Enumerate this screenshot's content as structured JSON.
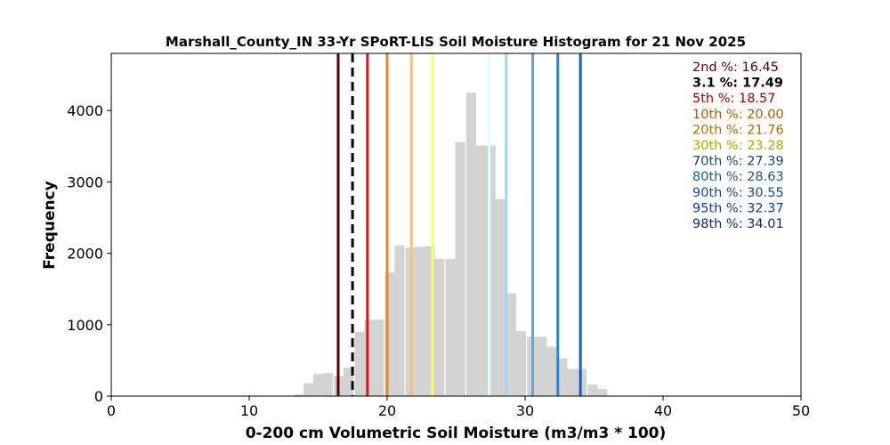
{
  "chart_data": {
    "type": "bar",
    "title": "Marshall_County_IN 33-Yr SPoRT-LIS Soil Moisture Histogram for 21 Nov 2025",
    "xlabel": "0-200 cm Volumetric Soil Moisture (m3/m3 * 100)",
    "ylabel": "Frequency",
    "xlim": [
      0,
      50
    ],
    "ylim": [
      0,
      4800
    ],
    "xticks": [
      0,
      10,
      20,
      30,
      40,
      50
    ],
    "yticks": [
      0,
      1000,
      2000,
      3000,
      4000
    ],
    "bin_width": 0.72,
    "bar_color": "#d3d3d3",
    "bins": [
      {
        "x": 13.6,
        "count": 20
      },
      {
        "x": 14.3,
        "count": 180
      },
      {
        "x": 15.0,
        "count": 310
      },
      {
        "x": 15.7,
        "count": 320
      },
      {
        "x": 16.5,
        "count": 280
      },
      {
        "x": 17.2,
        "count": 400
      },
      {
        "x": 18.0,
        "count": 900
      },
      {
        "x": 18.7,
        "count": 1070
      },
      {
        "x": 19.4,
        "count": 1070
      },
      {
        "x": 20.2,
        "count": 1730
      },
      {
        "x": 20.9,
        "count": 2110
      },
      {
        "x": 21.7,
        "count": 2080
      },
      {
        "x": 22.4,
        "count": 2090
      },
      {
        "x": 23.1,
        "count": 2100
      },
      {
        "x": 23.8,
        "count": 1920
      },
      {
        "x": 24.6,
        "count": 1920
      },
      {
        "x": 25.3,
        "count": 3560
      },
      {
        "x": 26.1,
        "count": 4250
      },
      {
        "x": 26.8,
        "count": 3510
      },
      {
        "x": 27.5,
        "count": 3510
      },
      {
        "x": 28.2,
        "count": 2760
      },
      {
        "x": 29.0,
        "count": 1440
      },
      {
        "x": 29.7,
        "count": 910
      },
      {
        "x": 30.5,
        "count": 830
      },
      {
        "x": 31.2,
        "count": 830
      },
      {
        "x": 31.9,
        "count": 690
      },
      {
        "x": 32.7,
        "count": 530
      },
      {
        "x": 33.4,
        "count": 380
      },
      {
        "x": 34.1,
        "count": 380
      },
      {
        "x": 34.9,
        "count": 160
      },
      {
        "x": 35.6,
        "count": 100
      },
      {
        "x": 36.3,
        "count": 0
      }
    ],
    "percentiles": [
      {
        "label": "2nd %: 16.45",
        "value": 16.45,
        "color": "#5a0000",
        "dashed": false
      },
      {
        "label": "3.1 %: 17.49",
        "value": 17.49,
        "color": "#000000",
        "dashed": true
      },
      {
        "label": "5th %: 18.57",
        "value": 18.57,
        "color": "#d7191c",
        "dashed": false
      },
      {
        "label": "10th %: 20.00",
        "value": 20.0,
        "color": "#e6892b",
        "dashed": false
      },
      {
        "label": "20th %: 21.76",
        "value": 21.76,
        "color": "#f5c27a",
        "dashed": false
      },
      {
        "label": "30th %: 23.28",
        "value": 23.28,
        "color": "#ffff66",
        "dashed": false
      },
      {
        "label": "70th %: 27.39",
        "value": 27.39,
        "color": "#e0ffff",
        "dashed": false
      },
      {
        "label": "80th %: 28.63",
        "value": 28.63,
        "color": "#a6d2f5",
        "dashed": false
      },
      {
        "label": "90th %: 30.55",
        "value": 30.55,
        "color": "#5aa6e8",
        "dashed": false
      },
      {
        "label": "95th %: 32.37",
        "value": 32.37,
        "color": "#2b7fd6",
        "dashed": false
      },
      {
        "label": "98th %: 34.01",
        "value": 34.01,
        "color": "#1560bd",
        "dashed": false
      }
    ],
    "legend_placement": "upper-right",
    "grid": false
  },
  "legend_text_colors": [
    "#5a0000",
    "#000000",
    "#a00000",
    "#b05a00",
    "#b06a10",
    "#b0a800",
    "#1a4a4a",
    "#1a5a8a",
    "#1a4a8a",
    "#0b3f90",
    "#0b3070"
  ]
}
